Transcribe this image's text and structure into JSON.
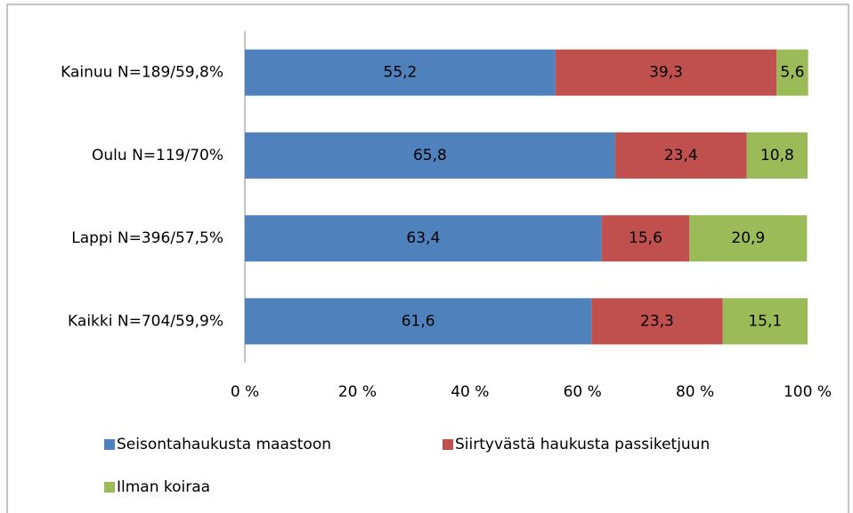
{
  "chart_data": {
    "type": "stacked-barh",
    "categories": [
      "Kainuu N=189/59,8%",
      "Oulu N=119/70%",
      "Lappi N=396/57,5%",
      "Kaikki N=704/59,9%"
    ],
    "series": [
      {
        "name": "Seisontahaukusta maastoon",
        "color": "#4f81bd",
        "values": [
          55.2,
          65.8,
          63.4,
          61.6
        ],
        "value_labels": [
          "55,2",
          "65,8",
          "63,4",
          "61,6"
        ]
      },
      {
        "name": "Siirtyvästä haukusta passiketjuun",
        "color": "#c0504d",
        "values": [
          39.3,
          23.4,
          15.6,
          23.3
        ],
        "value_labels": [
          "39,3",
          "23,4",
          "15,6",
          "23,3"
        ]
      },
      {
        "name": "Ilman koiraa",
        "color": "#9bbb59",
        "values": [
          5.6,
          10.8,
          20.9,
          15.1
        ],
        "value_labels": [
          "5,6",
          "10,8",
          "20,9",
          "15,1"
        ]
      }
    ],
    "xlim": [
      0,
      100
    ],
    "xticks": [
      {
        "value": 0,
        "label": "0 %"
      },
      {
        "value": 20,
        "label": "20 %"
      },
      {
        "value": 40,
        "label": "40 %"
      },
      {
        "value": 60,
        "label": "60 %"
      },
      {
        "value": 80,
        "label": "80 %"
      },
      {
        "value": 100,
        "label": "100 %"
      }
    ],
    "legend": "bottom"
  }
}
